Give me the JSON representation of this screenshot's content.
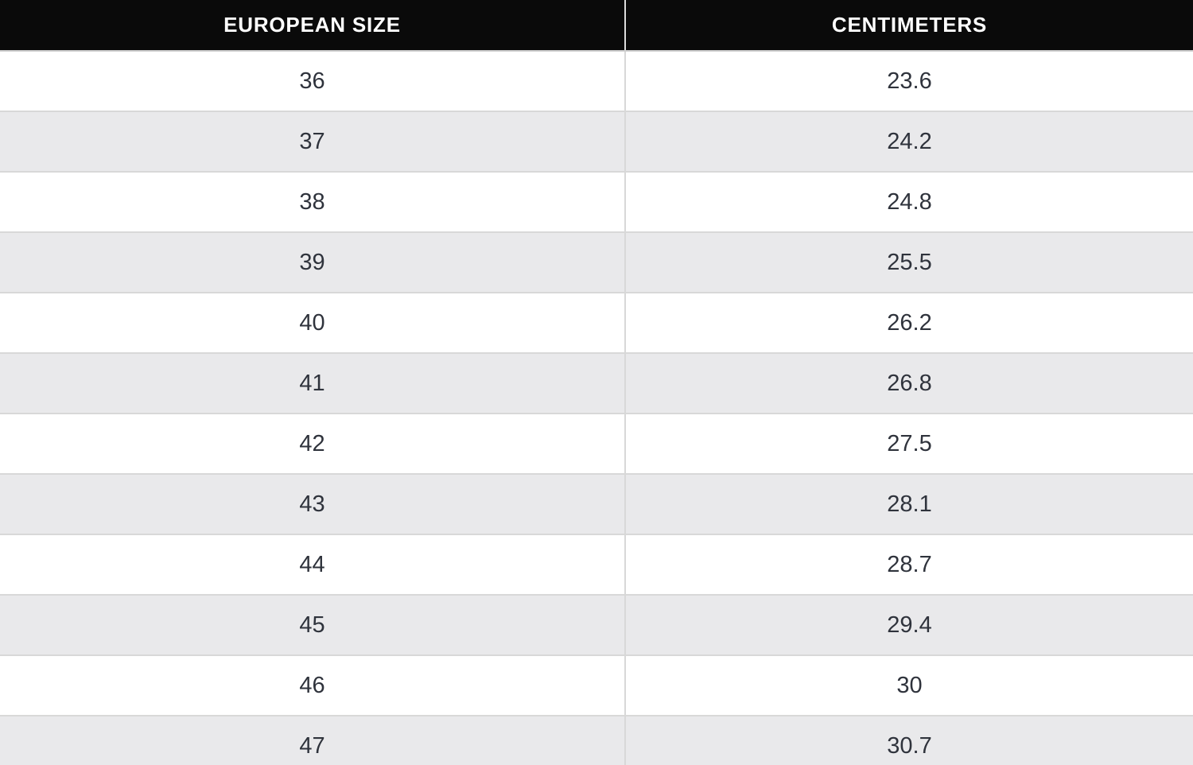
{
  "table": {
    "columns": [
      {
        "label": "EUROPEAN SIZE"
      },
      {
        "label": "CENTIMETERS"
      }
    ],
    "rows": [
      {
        "size": "36",
        "cm": "23.6"
      },
      {
        "size": "37",
        "cm": "24.2"
      },
      {
        "size": "38",
        "cm": "24.8"
      },
      {
        "size": "39",
        "cm": "25.5"
      },
      {
        "size": "40",
        "cm": "26.2"
      },
      {
        "size": "41",
        "cm": "26.8"
      },
      {
        "size": "42",
        "cm": "27.5"
      },
      {
        "size": "43",
        "cm": "28.1"
      },
      {
        "size": "44",
        "cm": "28.7"
      },
      {
        "size": "45",
        "cm": "29.4"
      },
      {
        "size": "46",
        "cm": "30"
      },
      {
        "size": "47",
        "cm": "30.7"
      }
    ]
  },
  "colors": {
    "header_bg": "#0a0a0a",
    "header_text": "#ffffff",
    "row_bg": "#ffffff",
    "row_alt_bg": "#e9e9eb",
    "border": "#d8d8d8",
    "cell_text": "#2f333c"
  }
}
